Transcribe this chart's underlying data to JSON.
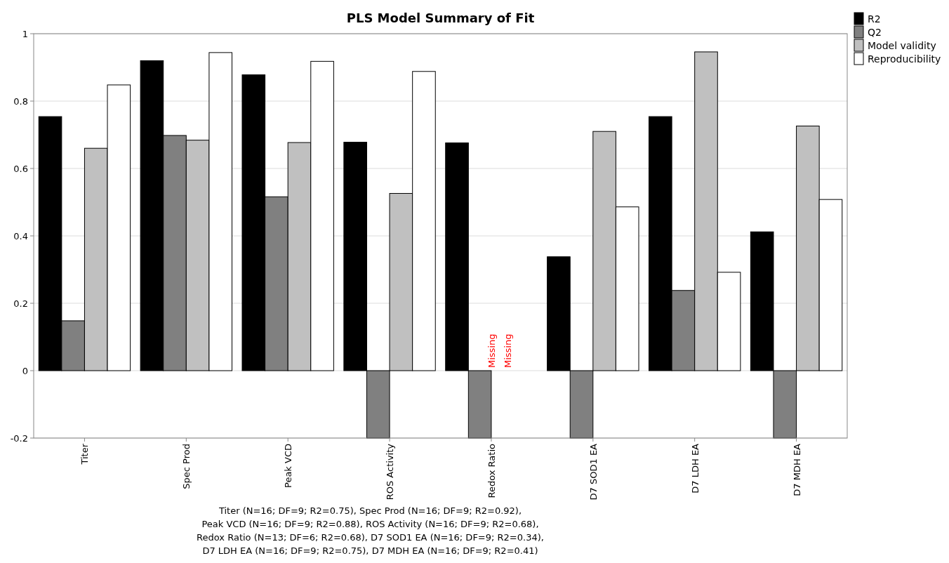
{
  "chart_data": {
    "type": "bar",
    "title": "PLS Model Summary of Fit",
    "categories": [
      "Titer",
      "Spec Prod",
      "Peak VCD",
      "ROS Activity",
      "Redox Ratio",
      "D7 SOD1 EA",
      "D7 LDH EA",
      "D7 MDH EA"
    ],
    "series": [
      {
        "name": "R2",
        "color": "#000000",
        "values": [
          0.754,
          0.92,
          0.878,
          0.678,
          0.676,
          0.338,
          0.754,
          0.412
        ]
      },
      {
        "name": "Q2",
        "color": "#808080",
        "values": [
          0.148,
          0.698,
          0.516,
          -0.2,
          -0.2,
          -0.2,
          0.238,
          -0.2
        ]
      },
      {
        "name": "Model validity",
        "color": "#c0c0c0",
        "values": [
          0.66,
          0.684,
          0.677,
          0.526,
          null,
          0.71,
          0.946,
          0.726
        ]
      },
      {
        "name": "Reproducibility",
        "color": "#ffffff",
        "values": [
          0.848,
          0.944,
          0.918,
          0.888,
          null,
          0.486,
          0.292,
          0.508
        ]
      }
    ],
    "ylim": [
      -0.2,
      1
    ],
    "yticks": [
      -0.2,
      0,
      0.2,
      0.4,
      0.6,
      0.8,
      1
    ],
    "grid": "y",
    "legend": "top right",
    "annotations": [
      {
        "text": "Missing",
        "x": "Redox Ratio",
        "y": 0
      },
      {
        "text": "Missing",
        "x": "Redox Ratio",
        "y": 0
      },
      "Titer (N=16; DF=9; R2=0.75), Spec Prod (N=16; DF=9; R2=0.92),",
      "Peak VCD (N=16; DF=9; R2=0.88), ROS Activity (N=16; DF=9; R2=0.68),",
      "Redox Ratio (N=13; DF=6; R2=0.68), D7 SOD1 EA (N=16; DF=9; R2=0.34),",
      "D7 LDH EA (N=16; DF=9; R2=0.75), D7 MDH EA (N=16; DF=9; R2=0.41)"
    ]
  }
}
